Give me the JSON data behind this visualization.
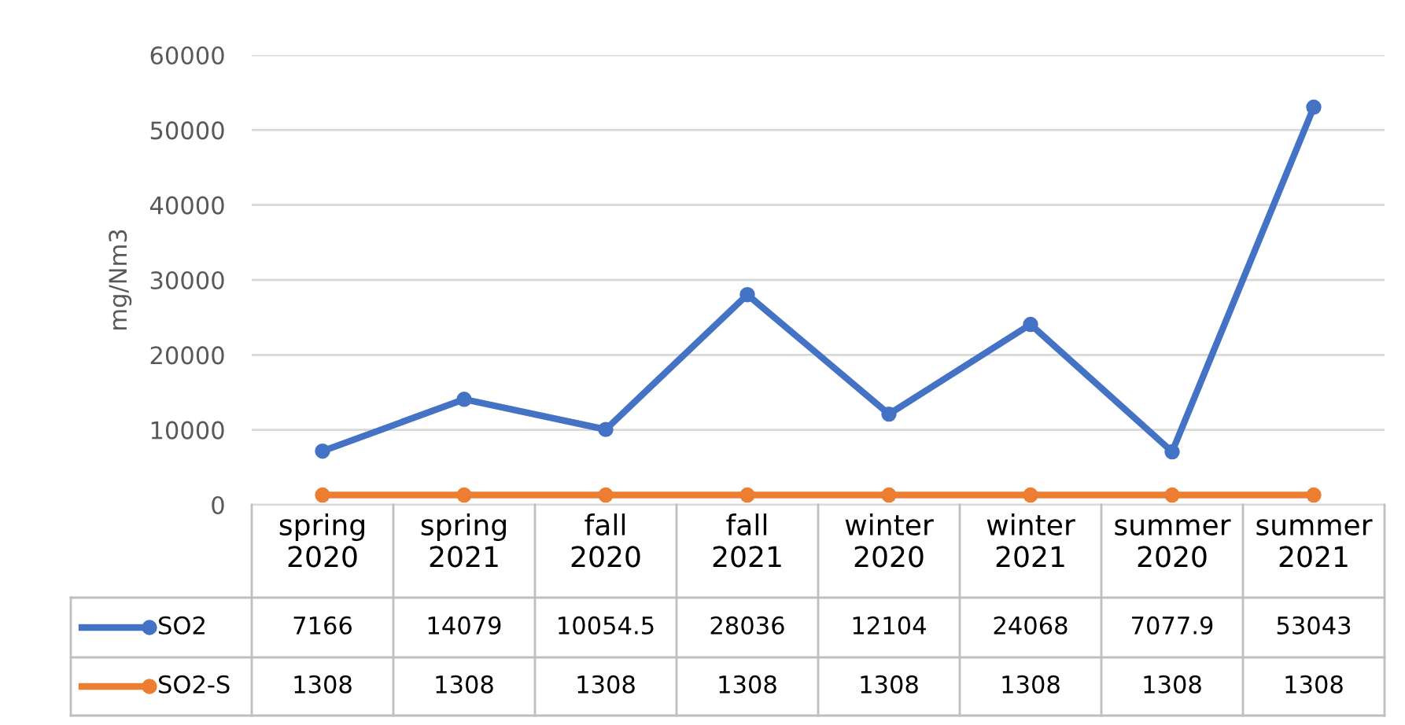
{
  "chart_data": {
    "type": "line",
    "ylabel": "mg/Nm3",
    "categories": [
      "spring 2020",
      "spring 2021",
      "fall 2020",
      "fall 2021",
      "winter 2020",
      "winter 2021",
      "summer 2020",
      "summer 2021"
    ],
    "series": [
      {
        "name": "SO2",
        "color": "#4472c4",
        "values": [
          7166,
          14079,
          10054.5,
          28036,
          12104,
          24068,
          7077.9,
          53043
        ]
      },
      {
        "name": "SO2-S",
        "color": "#ed7d31",
        "values": [
          1308,
          1308,
          1308,
          1308,
          1308,
          1308,
          1308,
          1308
        ]
      }
    ],
    "ylim": [
      0,
      60000
    ],
    "yticks": [
      0,
      10000,
      20000,
      30000,
      40000,
      50000,
      60000
    ],
    "grid": "y",
    "legend": "bottom",
    "marker": "circle",
    "line_style": "solid",
    "data_labels": true
  }
}
